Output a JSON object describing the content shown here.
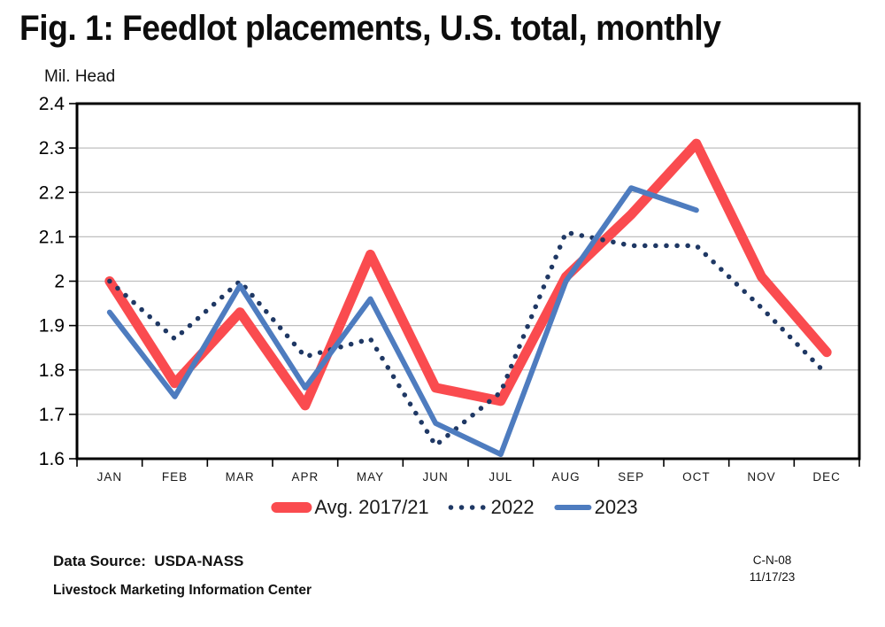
{
  "title": "Fig. 1: Feedlot placements, U.S. total, monthly",
  "footer": {
    "data_source": "Data Source:  USDA-NASS",
    "organization": "Livestock Marketing Information Center",
    "chart_id": "C-N-08",
    "date": "11/17/23"
  },
  "chart_data": {
    "type": "line",
    "title": "Fig. 1: Feedlot placements, U.S. total, monthly",
    "ylabel": "Mil. Head",
    "xlabel": "",
    "categories": [
      "JAN",
      "FEB",
      "MAR",
      "APR",
      "MAY",
      "JUN",
      "JUL",
      "AUG",
      "SEP",
      "OCT",
      "NOV",
      "DEC"
    ],
    "ylim": [
      1.6,
      2.4
    ],
    "y_tick_step": 0.1,
    "y_tick_labels": [
      "2.4",
      "2.3",
      "2.2",
      "2.1",
      "2",
      "1.9",
      "1.8",
      "1.7",
      "1.6"
    ],
    "grid": true,
    "legend_position": "bottom",
    "colors": {
      "avg_line": "#FA4B4F",
      "line_2022": "#1F3864",
      "line_2023": "#4E7CBF",
      "gridline": "#BFBFBF",
      "axis": "#000000"
    },
    "series": [
      {
        "name": "Avg. 2017/21",
        "style": "thick",
        "color": "#FA4B4F",
        "values": [
          2.0,
          1.77,
          1.93,
          1.72,
          2.06,
          1.76,
          1.73,
          2.01,
          2.15,
          2.31,
          2.01,
          1.84
        ]
      },
      {
        "name": "2022",
        "style": "dotted",
        "color": "#1F3864",
        "values": [
          2.0,
          1.87,
          2.0,
          1.83,
          1.87,
          1.63,
          1.75,
          2.11,
          2.08,
          2.08,
          1.94,
          1.79
        ]
      },
      {
        "name": "2023",
        "style": "solid",
        "color": "#4E7CBF",
        "values": [
          1.93,
          1.74,
          1.99,
          1.76,
          1.96,
          1.68,
          1.61,
          2.0,
          2.21,
          2.16,
          null,
          null
        ]
      }
    ]
  }
}
